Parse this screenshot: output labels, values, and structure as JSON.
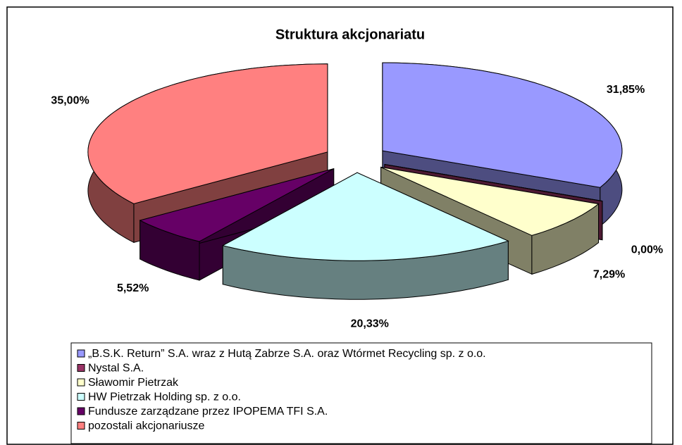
{
  "chart_data": {
    "type": "pie3d",
    "title": "Struktura akcjonariatu",
    "categories": [
      "„B.S.K. Return” S.A. wraz z Hutą Zabrze S.A. oraz Wtórmet Recycling sp. z o.o.",
      "Nystal S.A.",
      "Sławomir Pietrzak",
      "HW Pietrzak Holding sp. z o.o.",
      "Fundusze zarządzane przez IPOPEMA TFI S.A.",
      "pozostali akcjonariusze"
    ],
    "values": [
      31.85,
      0.0,
      7.29,
      20.33,
      5.52,
      35.0
    ],
    "value_labels": [
      "31,85%",
      "0,00%",
      "7,29%",
      "20,33%",
      "5,52%",
      "35,00%"
    ],
    "colors": [
      "#9999ff",
      "#993366",
      "#ffffcc",
      "#ccffff",
      "#660066",
      "#ff8080"
    ],
    "legend": "bottom"
  }
}
